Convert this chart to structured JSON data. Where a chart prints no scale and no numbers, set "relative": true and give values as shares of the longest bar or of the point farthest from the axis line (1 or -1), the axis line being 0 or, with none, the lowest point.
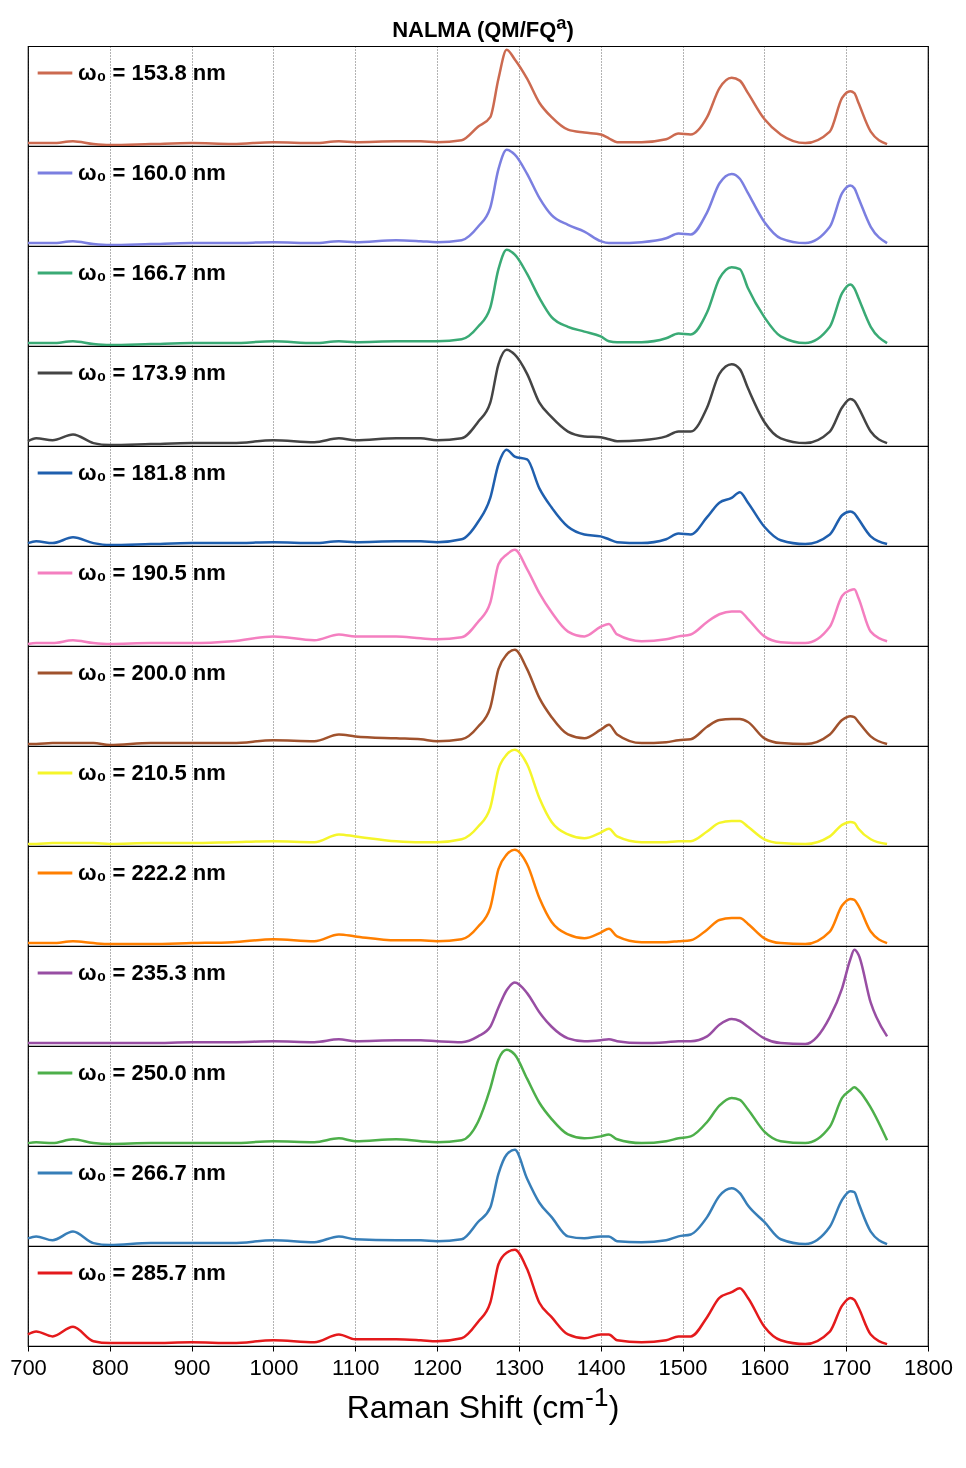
{
  "chart_data": [
    {
      "type": "line",
      "title": "NALMA (QM/FQ$^{a}$)",
      "relative": true,
      "xlim": [
        700,
        1800
      ],
      "xticks": [
        700,
        800,
        900,
        1000,
        1100,
        1200,
        1300,
        1400,
        1500,
        1600,
        1700,
        1800
      ],
      "grid": "x",
      "legend": "top left",
      "tick_labels": false,
      "x": [
        700,
        710,
        730,
        755,
        780,
        800,
        850,
        900,
        950,
        1000,
        1050,
        1080,
        1100,
        1150,
        1180,
        1200,
        1230,
        1250,
        1265,
        1275,
        1285,
        1295,
        1310,
        1325,
        1340,
        1360,
        1380,
        1400,
        1410,
        1420,
        1450,
        1480,
        1495,
        1510,
        1530,
        1545,
        1560,
        1570,
        1580,
        1600,
        1620,
        1650,
        1680,
        1695,
        1705,
        1710,
        1715,
        1730,
        1750
      ],
      "series": [
        {
          "name": "ω₀ = 153.8 nm",
          "color": "#cc6a50",
          "values": [
            0.03,
            0.03,
            0.03,
            0.05,
            0.02,
            0.01,
            0.02,
            0.03,
            0.02,
            0.04,
            0.03,
            0.05,
            0.04,
            0.05,
            0.05,
            0.04,
            0.06,
            0.2,
            0.3,
            0.7,
            1,
            0.9,
            0.7,
            0.45,
            0.3,
            0.17,
            0.14,
            0.12,
            0.08,
            0.04,
            0.04,
            0.07,
            0.13,
            0.12,
            0.3,
            0.6,
            0.71,
            0.68,
            0.55,
            0.28,
            0.12,
            0.03,
            0.15,
            0.5,
            0.57,
            0.55,
            0.45,
            0.15,
            0.02
          ]
        }
      ]
    },
    {
      "type": "line",
      "relative": true,
      "xlim": [
        700,
        1800
      ],
      "xticks": [
        700,
        800,
        900,
        1000,
        1100,
        1200,
        1300,
        1400,
        1500,
        1600,
        1700,
        1800
      ],
      "grid": "x",
      "legend": "top left",
      "tick_labels": false,
      "x": [
        700,
        710,
        730,
        755,
        780,
        800,
        850,
        900,
        950,
        1000,
        1050,
        1080,
        1100,
        1150,
        1180,
        1200,
        1230,
        1250,
        1265,
        1275,
        1285,
        1295,
        1310,
        1325,
        1340,
        1360,
        1380,
        1400,
        1410,
        1420,
        1450,
        1480,
        1495,
        1510,
        1530,
        1545,
        1560,
        1570,
        1580,
        1600,
        1620,
        1650,
        1680,
        1695,
        1705,
        1710,
        1715,
        1730,
        1750
      ],
      "series": [
        {
          "name": "ω₀ = 160.0 nm",
          "color": "#7b7fe0",
          "values": [
            0.03,
            0.03,
            0.03,
            0.05,
            0.02,
            0.01,
            0.02,
            0.03,
            0.03,
            0.04,
            0.03,
            0.05,
            0.04,
            0.06,
            0.05,
            0.04,
            0.06,
            0.2,
            0.4,
            0.8,
            1,
            0.95,
            0.75,
            0.5,
            0.32,
            0.22,
            0.15,
            0.05,
            0.03,
            0.03,
            0.04,
            0.08,
            0.13,
            0.12,
            0.35,
            0.65,
            0.75,
            0.7,
            0.55,
            0.25,
            0.08,
            0.03,
            0.2,
            0.55,
            0.63,
            0.6,
            0.5,
            0.2,
            0.03
          ]
        }
      ]
    },
    {
      "type": "line",
      "relative": true,
      "xlim": [
        700,
        1800
      ],
      "xticks": [
        700,
        800,
        900,
        1000,
        1100,
        1200,
        1300,
        1400,
        1500,
        1600,
        1700,
        1800
      ],
      "grid": "x",
      "legend": "top left",
      "tick_labels": false,
      "x": [
        700,
        710,
        730,
        755,
        780,
        800,
        850,
        900,
        950,
        1000,
        1050,
        1080,
        1100,
        1150,
        1180,
        1200,
        1230,
        1250,
        1265,
        1275,
        1285,
        1295,
        1310,
        1325,
        1340,
        1360,
        1380,
        1400,
        1410,
        1420,
        1450,
        1480,
        1495,
        1510,
        1530,
        1545,
        1560,
        1570,
        1580,
        1600,
        1620,
        1650,
        1680,
        1695,
        1705,
        1710,
        1715,
        1730,
        1750
      ],
      "series": [
        {
          "name": "ω₀ = 166.7 nm",
          "color": "#3aaa75",
          "values": [
            0.03,
            0.03,
            0.03,
            0.05,
            0.02,
            0.01,
            0.02,
            0.03,
            0.03,
            0.05,
            0.03,
            0.05,
            0.04,
            0.05,
            0.05,
            0.05,
            0.07,
            0.2,
            0.4,
            0.8,
            1,
            0.95,
            0.75,
            0.5,
            0.3,
            0.2,
            0.15,
            0.1,
            0.05,
            0.04,
            0.04,
            0.08,
            0.13,
            0.12,
            0.35,
            0.7,
            0.82,
            0.8,
            0.6,
            0.3,
            0.1,
            0.03,
            0.2,
            0.55,
            0.64,
            0.6,
            0.5,
            0.2,
            0.03
          ]
        }
      ]
    },
    {
      "type": "line",
      "relative": true,
      "xlim": [
        700,
        1800
      ],
      "xticks": [
        700,
        800,
        900,
        1000,
        1100,
        1200,
        1300,
        1400,
        1500,
        1600,
        1700,
        1800
      ],
      "grid": "x",
      "legend": "top left",
      "tick_labels": false,
      "x": [
        700,
        710,
        730,
        755,
        780,
        800,
        850,
        900,
        950,
        1000,
        1050,
        1080,
        1100,
        1150,
        1180,
        1200,
        1230,
        1250,
        1265,
        1275,
        1285,
        1295,
        1310,
        1325,
        1340,
        1360,
        1380,
        1400,
        1410,
        1420,
        1450,
        1480,
        1495,
        1510,
        1530,
        1545,
        1560,
        1570,
        1580,
        1600,
        1620,
        1650,
        1680,
        1695,
        1705,
        1710,
        1715,
        1730,
        1750
      ],
      "series": [
        {
          "name": "ω₀ = 173.9 nm",
          "color": "#444444",
          "values": [
            0.05,
            0.08,
            0.06,
            0.12,
            0.03,
            0.01,
            0.02,
            0.03,
            0.03,
            0.06,
            0.04,
            0.08,
            0.06,
            0.08,
            0.08,
            0.06,
            0.08,
            0.25,
            0.45,
            0.85,
            1,
            0.95,
            0.75,
            0.45,
            0.3,
            0.15,
            0.1,
            0.09,
            0.07,
            0.05,
            0.06,
            0.1,
            0.15,
            0.15,
            0.4,
            0.75,
            0.85,
            0.8,
            0.6,
            0.25,
            0.08,
            0.03,
            0.15,
            0.4,
            0.49,
            0.47,
            0.4,
            0.15,
            0.03
          ]
        }
      ]
    },
    {
      "type": "line",
      "relative": true,
      "xlim": [
        700,
        1800
      ],
      "xticks": [
        700,
        800,
        900,
        1000,
        1100,
        1200,
        1300,
        1400,
        1500,
        1600,
        1700,
        1800
      ],
      "grid": "x",
      "legend": "top left",
      "tick_labels": false,
      "x": [
        700,
        710,
        730,
        755,
        780,
        800,
        850,
        900,
        950,
        1000,
        1050,
        1080,
        1100,
        1150,
        1180,
        1200,
        1230,
        1250,
        1265,
        1275,
        1285,
        1295,
        1310,
        1325,
        1340,
        1360,
        1380,
        1400,
        1410,
        1420,
        1450,
        1480,
        1495,
        1510,
        1530,
        1545,
        1560,
        1570,
        1580,
        1600,
        1620,
        1650,
        1680,
        1695,
        1705,
        1710,
        1715,
        1730,
        1750
      ],
      "series": [
        {
          "name": "ω₀ = 181.8 nm",
          "color": "#1f5fae",
          "values": [
            0.03,
            0.05,
            0.03,
            0.09,
            0.03,
            0.01,
            0.02,
            0.03,
            0.03,
            0.04,
            0.03,
            0.05,
            0.04,
            0.05,
            0.05,
            0.04,
            0.07,
            0.25,
            0.5,
            0.85,
            1,
            0.93,
            0.9,
            0.6,
            0.4,
            0.2,
            0.12,
            0.1,
            0.07,
            0.04,
            0.03,
            0.07,
            0.13,
            0.12,
            0.3,
            0.45,
            0.5,
            0.56,
            0.45,
            0.2,
            0.06,
            0.02,
            0.12,
            0.32,
            0.36,
            0.34,
            0.28,
            0.1,
            0.02
          ]
        }
      ]
    },
    {
      "type": "line",
      "relative": true,
      "xlim": [
        700,
        1800
      ],
      "xticks": [
        700,
        800,
        900,
        1000,
        1100,
        1200,
        1300,
        1400,
        1500,
        1600,
        1700,
        1800
      ],
      "grid": "x",
      "legend": "top left",
      "tick_labels": false,
      "x": [
        700,
        710,
        730,
        755,
        780,
        800,
        850,
        900,
        950,
        1000,
        1050,
        1080,
        1100,
        1150,
        1180,
        1200,
        1230,
        1250,
        1265,
        1275,
        1285,
        1295,
        1310,
        1325,
        1340,
        1360,
        1380,
        1400,
        1410,
        1420,
        1450,
        1480,
        1495,
        1510,
        1530,
        1545,
        1560,
        1570,
        1580,
        1600,
        1620,
        1650,
        1680,
        1695,
        1705,
        1710,
        1715,
        1730,
        1750
      ],
      "series": [
        {
          "name": "ω₀ = 190.5 nm",
          "color": "#f47fc0",
          "values": [
            0.02,
            0.03,
            0.03,
            0.06,
            0.03,
            0.02,
            0.03,
            0.03,
            0.05,
            0.1,
            0.06,
            0.12,
            0.1,
            0.1,
            0.08,
            0.07,
            0.09,
            0.25,
            0.45,
            0.85,
            0.95,
            1,
            0.8,
            0.55,
            0.35,
            0.15,
            0.1,
            0.2,
            0.23,
            0.12,
            0.05,
            0.07,
            0.1,
            0.12,
            0.25,
            0.33,
            0.36,
            0.36,
            0.28,
            0.1,
            0.04,
            0.03,
            0.2,
            0.52,
            0.58,
            0.59,
            0.5,
            0.15,
            0.05
          ]
        }
      ]
    },
    {
      "type": "line",
      "relative": true,
      "xlim": [
        700,
        1800
      ],
      "xticks": [
        700,
        800,
        900,
        1000,
        1100,
        1200,
        1300,
        1400,
        1500,
        1600,
        1700,
        1800
      ],
      "grid": "x",
      "legend": "top left",
      "tick_labels": false,
      "x": [
        700,
        710,
        730,
        755,
        780,
        800,
        850,
        900,
        950,
        1000,
        1050,
        1080,
        1100,
        1150,
        1180,
        1200,
        1230,
        1250,
        1265,
        1275,
        1285,
        1295,
        1310,
        1325,
        1340,
        1360,
        1380,
        1400,
        1410,
        1420,
        1450,
        1480,
        1495,
        1510,
        1530,
        1545,
        1560,
        1570,
        1580,
        1600,
        1620,
        1650,
        1680,
        1695,
        1705,
        1710,
        1715,
        1730,
        1750
      ],
      "series": [
        {
          "name": "ω₀ = 200.0 nm",
          "color": "#a0522d",
          "values": [
            0.02,
            0.02,
            0.03,
            0.03,
            0.03,
            0.01,
            0.03,
            0.03,
            0.03,
            0.06,
            0.05,
            0.12,
            0.1,
            0.08,
            0.07,
            0.05,
            0.07,
            0.2,
            0.4,
            0.8,
            0.95,
            1,
            0.8,
            0.5,
            0.3,
            0.12,
            0.08,
            0.17,
            0.22,
            0.12,
            0.03,
            0.04,
            0.06,
            0.07,
            0.2,
            0.27,
            0.28,
            0.28,
            0.25,
            0.08,
            0.03,
            0.02,
            0.12,
            0.27,
            0.31,
            0.3,
            0.25,
            0.1,
            0.02
          ]
        }
      ]
    },
    {
      "type": "line",
      "relative": true,
      "xlim": [
        700,
        1800
      ],
      "xticks": [
        700,
        800,
        900,
        1000,
        1100,
        1200,
        1300,
        1400,
        1500,
        1600,
        1700,
        1800
      ],
      "grid": "x",
      "legend": "top left",
      "tick_labels": false,
      "x": [
        700,
        710,
        730,
        755,
        780,
        800,
        850,
        900,
        950,
        1000,
        1050,
        1080,
        1100,
        1150,
        1180,
        1200,
        1230,
        1250,
        1265,
        1275,
        1285,
        1295,
        1310,
        1325,
        1340,
        1360,
        1380,
        1400,
        1410,
        1420,
        1450,
        1480,
        1495,
        1510,
        1530,
        1545,
        1560,
        1570,
        1580,
        1600,
        1620,
        1650,
        1680,
        1695,
        1705,
        1710,
        1715,
        1730,
        1750
      ],
      "series": [
        {
          "name": "ω₀ = 210.5 nm",
          "color": "#f5f52a",
          "values": [
            0.02,
            0.02,
            0.03,
            0.03,
            0.03,
            0.02,
            0.03,
            0.03,
            0.04,
            0.05,
            0.04,
            0.12,
            0.1,
            0.05,
            0.04,
            0.04,
            0.07,
            0.2,
            0.4,
            0.8,
            0.95,
            1,
            0.85,
            0.5,
            0.25,
            0.12,
            0.08,
            0.14,
            0.18,
            0.1,
            0.04,
            0.04,
            0.05,
            0.05,
            0.15,
            0.24,
            0.26,
            0.26,
            0.2,
            0.07,
            0.03,
            0.02,
            0.1,
            0.22,
            0.25,
            0.24,
            0.18,
            0.07,
            0.02
          ]
        }
      ]
    },
    {
      "type": "line",
      "relative": true,
      "xlim": [
        700,
        1800
      ],
      "xticks": [
        700,
        800,
        900,
        1000,
        1100,
        1200,
        1300,
        1400,
        1500,
        1600,
        1700,
        1800
      ],
      "grid": "x",
      "legend": "top left",
      "tick_labels": false,
      "x": [
        700,
        710,
        730,
        755,
        780,
        800,
        850,
        900,
        950,
        1000,
        1050,
        1080,
        1100,
        1150,
        1180,
        1200,
        1230,
        1250,
        1265,
        1275,
        1285,
        1295,
        1310,
        1325,
        1340,
        1360,
        1380,
        1400,
        1410,
        1420,
        1450,
        1480,
        1495,
        1510,
        1530,
        1545,
        1560,
        1570,
        1580,
        1600,
        1620,
        1650,
        1680,
        1695,
        1705,
        1710,
        1715,
        1730,
        1750
      ],
      "series": [
        {
          "name": "ω₀ = 222.2 nm",
          "color": "#ff7f00",
          "values": [
            0.03,
            0.03,
            0.03,
            0.05,
            0.03,
            0.02,
            0.02,
            0.03,
            0.04,
            0.07,
            0.05,
            0.12,
            0.1,
            0.06,
            0.06,
            0.05,
            0.07,
            0.2,
            0.4,
            0.8,
            0.95,
            1,
            0.85,
            0.5,
            0.25,
            0.12,
            0.08,
            0.14,
            0.18,
            0.1,
            0.04,
            0.04,
            0.05,
            0.06,
            0.17,
            0.27,
            0.29,
            0.29,
            0.23,
            0.08,
            0.03,
            0.02,
            0.15,
            0.42,
            0.49,
            0.48,
            0.42,
            0.15,
            0.03
          ]
        }
      ]
    },
    {
      "type": "line",
      "relative": true,
      "xlim": [
        700,
        1800
      ],
      "xticks": [
        700,
        800,
        900,
        1000,
        1100,
        1200,
        1300,
        1400,
        1500,
        1600,
        1700,
        1800
      ],
      "grid": "x",
      "legend": "top left",
      "tick_labels": false,
      "x": [
        700,
        710,
        730,
        755,
        780,
        800,
        850,
        900,
        950,
        1000,
        1050,
        1080,
        1100,
        1150,
        1180,
        1200,
        1230,
        1250,
        1265,
        1275,
        1285,
        1295,
        1310,
        1325,
        1340,
        1360,
        1380,
        1400,
        1410,
        1420,
        1450,
        1480,
        1495,
        1510,
        1530,
        1545,
        1560,
        1570,
        1580,
        1600,
        1620,
        1650,
        1680,
        1695,
        1705,
        1710,
        1715,
        1730,
        1750
      ],
      "series": [
        {
          "name": "ω₀ = 235.3 nm",
          "color": "#984ea3",
          "values": [
            0.03,
            0.03,
            0.03,
            0.03,
            0.03,
            0.03,
            0.03,
            0.04,
            0.04,
            0.05,
            0.04,
            0.07,
            0.05,
            0.06,
            0.06,
            0.05,
            0.04,
            0.1,
            0.2,
            0.4,
            0.58,
            0.66,
            0.55,
            0.35,
            0.2,
            0.08,
            0.05,
            0.06,
            0.07,
            0.05,
            0.03,
            0.04,
            0.05,
            0.05,
            0.1,
            0.22,
            0.28,
            0.26,
            0.2,
            0.08,
            0.03,
            0.02,
            0.3,
            0.6,
            0.9,
            1,
            0.95,
            0.45,
            0.1
          ]
        }
      ]
    },
    {
      "type": "line",
      "relative": true,
      "xlim": [
        700,
        1800
      ],
      "xticks": [
        700,
        800,
        900,
        1000,
        1100,
        1200,
        1300,
        1400,
        1500,
        1600,
        1700,
        1800
      ],
      "grid": "x",
      "legend": "top left",
      "tick_labels": false,
      "x": [
        700,
        710,
        730,
        755,
        780,
        800,
        850,
        900,
        950,
        1000,
        1050,
        1080,
        1100,
        1150,
        1180,
        1200,
        1230,
        1250,
        1265,
        1275,
        1285,
        1295,
        1310,
        1325,
        1340,
        1360,
        1380,
        1400,
        1410,
        1420,
        1450,
        1480,
        1495,
        1510,
        1530,
        1545,
        1560,
        1570,
        1580,
        1600,
        1620,
        1650,
        1680,
        1695,
        1705,
        1710,
        1715,
        1730,
        1750
      ],
      "series": [
        {
          "name": "ω₀ = 250.0 nm",
          "color": "#4daf4a",
          "values": [
            0.03,
            0.04,
            0.03,
            0.07,
            0.03,
            0.02,
            0.03,
            0.03,
            0.03,
            0.05,
            0.04,
            0.08,
            0.05,
            0.07,
            0.05,
            0.04,
            0.06,
            0.25,
            0.6,
            0.9,
            1,
            0.95,
            0.7,
            0.45,
            0.28,
            0.12,
            0.08,
            0.1,
            0.12,
            0.07,
            0.03,
            0.05,
            0.08,
            0.1,
            0.25,
            0.42,
            0.5,
            0.48,
            0.38,
            0.15,
            0.05,
            0.03,
            0.2,
            0.5,
            0.58,
            0.61,
            0.58,
            0.4,
            0.06
          ]
        }
      ]
    },
    {
      "type": "line",
      "relative": true,
      "xlim": [
        700,
        1800
      ],
      "xticks": [
        700,
        800,
        900,
        1000,
        1100,
        1200,
        1300,
        1400,
        1500,
        1600,
        1700,
        1800
      ],
      "grid": "x",
      "legend": "top left",
      "tick_labels": false,
      "x": [
        700,
        710,
        730,
        755,
        780,
        800,
        850,
        900,
        950,
        1000,
        1050,
        1080,
        1100,
        1150,
        1180,
        1200,
        1230,
        1250,
        1265,
        1275,
        1285,
        1295,
        1310,
        1325,
        1340,
        1360,
        1380,
        1400,
        1410,
        1420,
        1450,
        1480,
        1495,
        1510,
        1530,
        1545,
        1560,
        1570,
        1580,
        1600,
        1620,
        1650,
        1680,
        1695,
        1705,
        1710,
        1715,
        1730,
        1750
      ],
      "series": [
        {
          "name": "ω₀ = 266.7 nm",
          "color": "#377eb8",
          "values": [
            0.08,
            0.1,
            0.06,
            0.15,
            0.03,
            0.01,
            0.03,
            0.03,
            0.03,
            0.06,
            0.04,
            0.1,
            0.07,
            0.06,
            0.06,
            0.05,
            0.07,
            0.25,
            0.4,
            0.75,
            0.95,
            1,
            0.7,
            0.45,
            0.3,
            0.1,
            0.08,
            0.1,
            0.1,
            0.05,
            0.04,
            0.06,
            0.1,
            0.12,
            0.3,
            0.52,
            0.6,
            0.55,
            0.42,
            0.25,
            0.07,
            0.02,
            0.2,
            0.48,
            0.57,
            0.56,
            0.45,
            0.15,
            0.02
          ]
        }
      ]
    },
    {
      "type": "line",
      "relative": true,
      "xlim": [
        700,
        1800
      ],
      "xticks": [
        700,
        800,
        900,
        1000,
        1100,
        1200,
        1300,
        1400,
        1500,
        1600,
        1700,
        1800
      ],
      "grid": "x",
      "legend": "top left",
      "tick_labels": "x",
      "xlabel": "Raman Shift (cm$^{-1}$)",
      "x": [
        700,
        710,
        730,
        755,
        780,
        800,
        850,
        900,
        950,
        1000,
        1050,
        1080,
        1100,
        1150,
        1180,
        1200,
        1230,
        1250,
        1265,
        1275,
        1285,
        1295,
        1310,
        1325,
        1340,
        1360,
        1380,
        1400,
        1410,
        1420,
        1450,
        1480,
        1495,
        1510,
        1530,
        1545,
        1560,
        1570,
        1580,
        1600,
        1620,
        1650,
        1680,
        1695,
        1705,
        1710,
        1715,
        1730,
        1750
      ],
      "series": [
        {
          "name": "ω₀ = 285.7 nm",
          "color": "#e41a1c",
          "values": [
            0.12,
            0.15,
            0.1,
            0.2,
            0.05,
            0.03,
            0.03,
            0.04,
            0.03,
            0.06,
            0.04,
            0.12,
            0.07,
            0.07,
            0.06,
            0.05,
            0.08,
            0.25,
            0.45,
            0.85,
            0.97,
            1,
            0.8,
            0.45,
            0.3,
            0.12,
            0.08,
            0.12,
            0.12,
            0.06,
            0.04,
            0.06,
            0.1,
            0.1,
            0.3,
            0.5,
            0.56,
            0.6,
            0.5,
            0.2,
            0.06,
            0.02,
            0.15,
            0.42,
            0.5,
            0.48,
            0.4,
            0.12,
            0.02
          ]
        }
      ]
    }
  ]
}
